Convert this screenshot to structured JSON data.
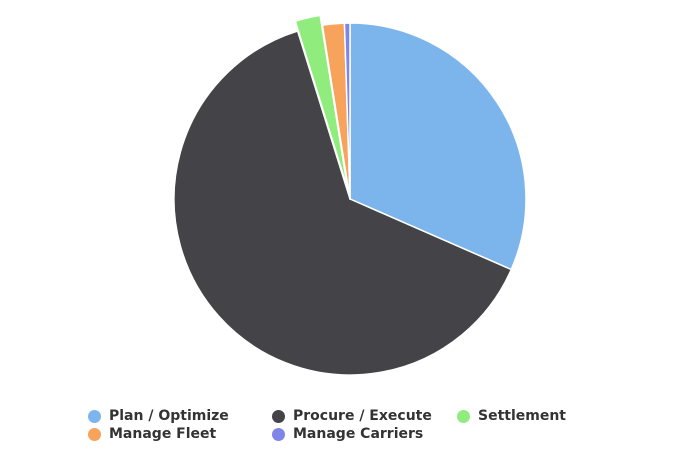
{
  "chart_data": {
    "type": "pie",
    "title": "",
    "legend_position": "bottom",
    "series": [
      {
        "name": "Plan / Optimize",
        "value": 31.5,
        "color": "#7cb5ec"
      },
      {
        "name": "Procure / Execute",
        "value": 63.5,
        "color": "#434348"
      },
      {
        "name": "Settlement",
        "value": 2.3,
        "color": "#90ed7d",
        "sliced": true
      },
      {
        "name": "Manage Fleet",
        "value": 2.0,
        "color": "#f7a35c"
      },
      {
        "name": "Manage Carriers",
        "value": 0.5,
        "color": "#8085e9"
      }
    ]
  }
}
